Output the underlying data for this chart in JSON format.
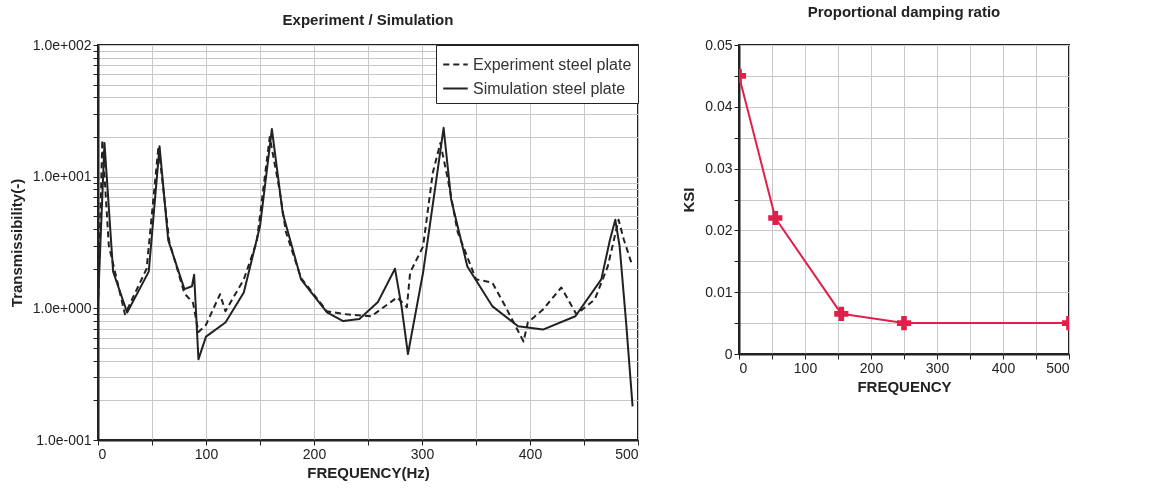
{
  "chart_data": [
    {
      "type": "line",
      "title": "Experiment / Simulation",
      "xlabel": "FREQUENCY(Hz)",
      "ylabel": "Transmissibility(-)",
      "log": true,
      "grid": true,
      "legend": "top right",
      "xlim": [
        0,
        500
      ],
      "xticks": [
        0,
        {
          "value": 50,
          "label": null
        },
        100,
        {
          "value": 150,
          "label": null
        },
        200,
        {
          "value": 250,
          "label": null
        },
        300,
        {
          "value": 350,
          "label": null
        },
        400,
        {
          "value": 450,
          "label": null
        },
        500
      ],
      "ylim": [
        0.1,
        100
      ],
      "yticks": [
        {
          "value": 0.1,
          "label": "1.0e-001"
        },
        {
          "value": 0.2,
          "label": null
        },
        {
          "value": 0.3,
          "label": null
        },
        {
          "value": 0.4,
          "label": null
        },
        {
          "value": 0.5,
          "label": null
        },
        {
          "value": 0.6,
          "label": null
        },
        {
          "value": 0.7,
          "label": null
        },
        {
          "value": 0.8,
          "label": null
        },
        {
          "value": 0.9,
          "label": null
        },
        {
          "value": 1,
          "label": "1.0e+000"
        },
        {
          "value": 2,
          "label": null
        },
        {
          "value": 3,
          "label": null
        },
        {
          "value": 4,
          "label": null
        },
        {
          "value": 5,
          "label": null
        },
        {
          "value": 6,
          "label": null
        },
        {
          "value": 7,
          "label": null
        },
        {
          "value": 8,
          "label": null
        },
        {
          "value": 9,
          "label": null
        },
        {
          "value": 10,
          "label": "1.0e+001"
        },
        {
          "value": 20,
          "label": null
        },
        {
          "value": 30,
          "label": null
        },
        {
          "value": 40,
          "label": null
        },
        {
          "value": 50,
          "label": null
        },
        {
          "value": 60,
          "label": null
        },
        {
          "value": 70,
          "label": null
        },
        {
          "value": 80,
          "label": null
        },
        {
          "value": 90,
          "label": null
        },
        {
          "value": 100,
          "label": "1.0e+002"
        }
      ],
      "series": [
        {
          "name": "Experiment steel plate",
          "color": "#222222",
          "line_style": "dashed",
          "x": [
            0,
            4,
            10,
            25,
            45,
            56,
            66,
            80,
            88,
            93,
            100,
            113,
            118,
            135,
            147,
            159,
            168,
            174,
            188,
            212,
            230,
            253,
            277,
            286,
            289,
            301,
            310,
            317,
            324,
            333,
            350,
            365,
            377,
            394,
            398,
            412,
            429,
            443,
            460,
            472,
            482,
            487,
            494
          ],
          "values": [
            1.0,
            19,
            3.0,
            0.9,
            2.0,
            17,
            3.2,
            1.3,
            1.1,
            0.66,
            0.75,
            1.28,
            0.95,
            1.66,
            3.2,
            20,
            8,
            3.8,
            1.7,
            0.95,
            0.9,
            0.87,
            1.21,
            1.02,
            1.87,
            2.95,
            10.7,
            18,
            9.5,
            3.8,
            1.66,
            1.57,
            1.04,
            0.56,
            0.78,
            0.98,
            1.44,
            0.9,
            1.17,
            2.08,
            4.7,
            3.3,
            2.2
          ]
        },
        {
          "name": "Simulation steel plate",
          "color": "#222222",
          "line_style": "solid",
          "x": [
            0,
            6,
            14,
            27,
            47,
            57,
            65,
            80,
            87,
            89,
            93,
            100,
            118,
            135,
            150,
            161,
            171,
            188,
            212,
            227,
            242,
            259,
            275,
            281,
            287,
            301,
            312,
            320,
            327,
            342,
            365,
            389,
            412,
            442,
            466,
            474,
            479,
            483,
            489,
            495
          ],
          "values": [
            1.1,
            18,
            1.9,
            0.93,
            1.9,
            17,
            3.3,
            1.4,
            1.47,
            1.8,
            0.41,
            0.61,
            0.78,
            1.32,
            4.2,
            23,
            5.3,
            1.66,
            0.93,
            0.8,
            0.83,
            1.11,
            2.0,
            1.04,
            0.45,
            1.87,
            8,
            23.5,
            6.7,
            2.08,
            1.04,
            0.73,
            0.69,
            0.87,
            1.66,
            3.3,
            4.7,
            2.95,
            0.78,
            0.18
          ]
        }
      ]
    },
    {
      "type": "line",
      "title": "Proportional damping ratio",
      "xlabel": "FREQUENCY",
      "ylabel": "KSI",
      "grid": true,
      "marker": "cross",
      "xlim": [
        0,
        500
      ],
      "xticks": [
        0,
        {
          "value": 50,
          "label": null
        },
        100,
        {
          "value": 150,
          "label": null
        },
        200,
        {
          "value": 250,
          "label": null
        },
        300,
        {
          "value": 350,
          "label": null
        },
        400,
        {
          "value": 450,
          "label": null
        },
        500
      ],
      "ylim": [
        0,
        0.05
      ],
      "yticks": [
        0,
        {
          "value": 0.005,
          "label": null
        },
        0.01,
        {
          "value": 0.015,
          "label": null
        },
        0.02,
        {
          "value": 0.025,
          "label": null
        },
        0.03,
        {
          "value": 0.035,
          "label": null
        },
        0.04,
        {
          "value": 0.045,
          "label": null
        },
        0.05
      ],
      "series": [
        {
          "color": "#e0204a",
          "x": [
            0,
            55,
            155,
            250,
            500
          ],
          "values": [
            0.045,
            0.022,
            0.0065,
            0.005,
            0.005
          ]
        }
      ]
    }
  ]
}
